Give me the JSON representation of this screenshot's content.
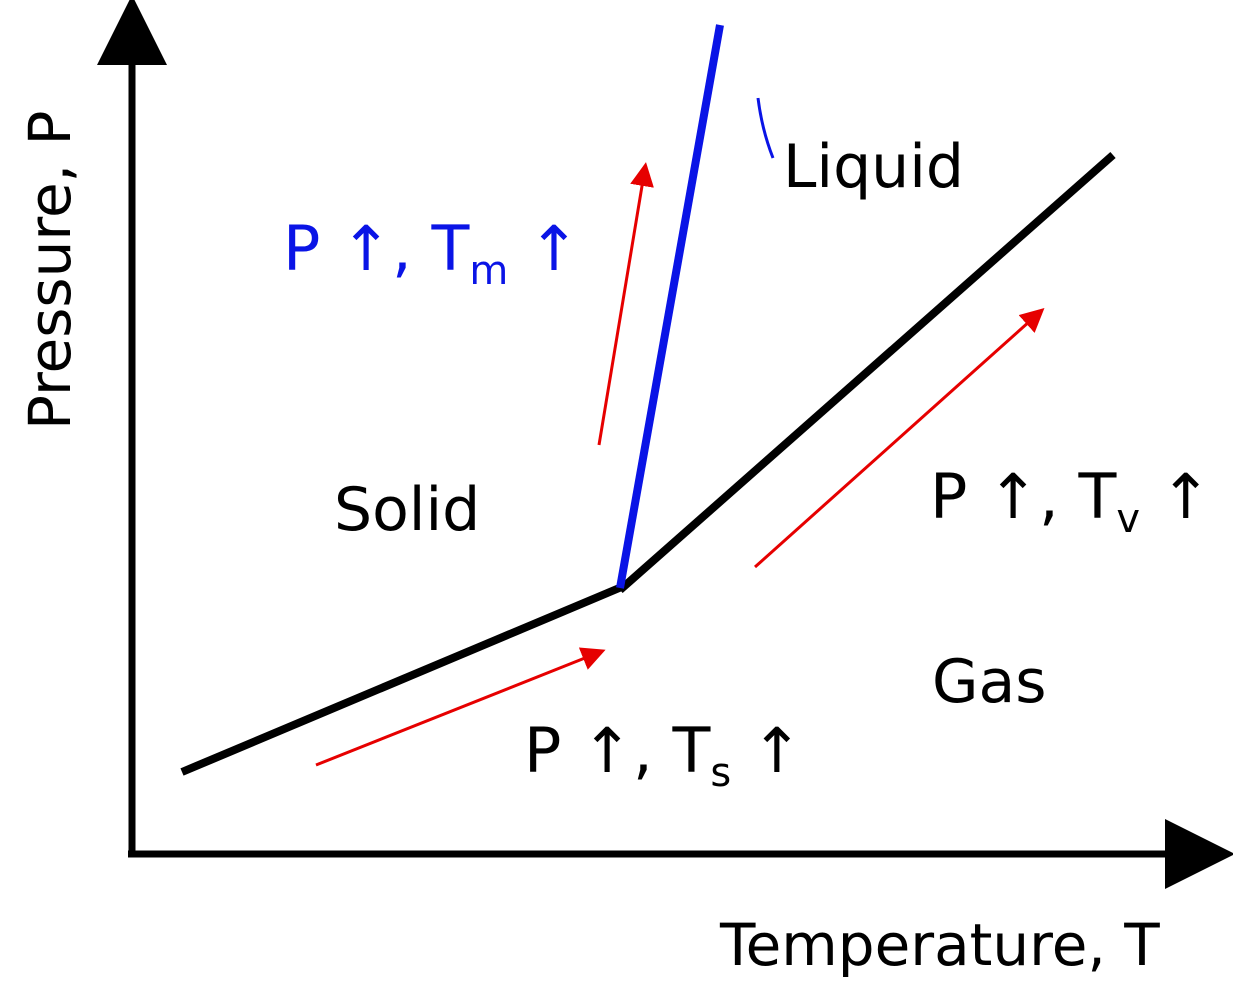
{
  "axes": {
    "x_label": "Temperature, T",
    "y_label": "Pressure, P"
  },
  "regions": {
    "solid": "Solid",
    "liquid": "Liquid",
    "gas": "Gas"
  },
  "relations": {
    "melting": {
      "main": "P ↑, T",
      "sub": "m",
      "tail": " ↑",
      "color": "#0a14e6"
    },
    "vaporization": {
      "main": "P ↑, T",
      "sub": "v",
      "tail": " ↑",
      "color": "#000000"
    },
    "sublimation": {
      "main": "P ↑, T",
      "sub": "s",
      "tail": " ↑",
      "color": "#000000"
    }
  },
  "colors": {
    "axis": "#000000",
    "phase_boundary": "#000000",
    "melting_curve": "#0a14e6",
    "trend_arrow": "#e60000"
  }
}
